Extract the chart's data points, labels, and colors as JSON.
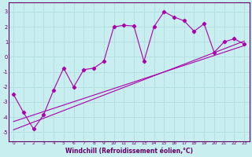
{
  "bg_color": "#c8eef0",
  "grid_color": "#b0dde0",
  "line_color": "#aa00aa",
  "xlabel": "Windchill (Refroidissement éolien,°C)",
  "xlim": [
    -0.5,
    23.5
  ],
  "ylim": [
    -5.6,
    3.6
  ],
  "yticks": [
    -5,
    -4,
    -3,
    -2,
    -1,
    0,
    1,
    2,
    3
  ],
  "xticks": [
    0,
    1,
    2,
    3,
    4,
    5,
    6,
    7,
    8,
    9,
    10,
    11,
    12,
    13,
    14,
    15,
    16,
    17,
    18,
    19,
    20,
    21,
    22,
    23
  ],
  "line1_x": [
    0,
    1,
    2,
    3,
    4,
    5,
    6,
    7,
    8,
    9,
    10,
    11,
    12,
    13,
    14,
    15,
    16,
    17,
    18,
    19,
    20,
    21,
    22,
    23
  ],
  "line1_y": [
    -2.5,
    -3.7,
    -4.8,
    -3.85,
    -2.2,
    -0.75,
    -2.0,
    -0.85,
    -0.75,
    -0.3,
    2.0,
    2.1,
    2.05,
    -0.3,
    2.0,
    3.0,
    2.65,
    2.4,
    1.7,
    2.2,
    0.3,
    1.0,
    1.2,
    0.85
  ],
  "line2_x": [
    0,
    23
  ],
  "line2_y": [
    -4.85,
    1.05
  ],
  "line3_x": [
    0,
    23
  ],
  "line3_y": [
    -4.3,
    0.75
  ],
  "spine_color": "#660066",
  "tick_color": "#660066",
  "xlabel_color": "#660066"
}
